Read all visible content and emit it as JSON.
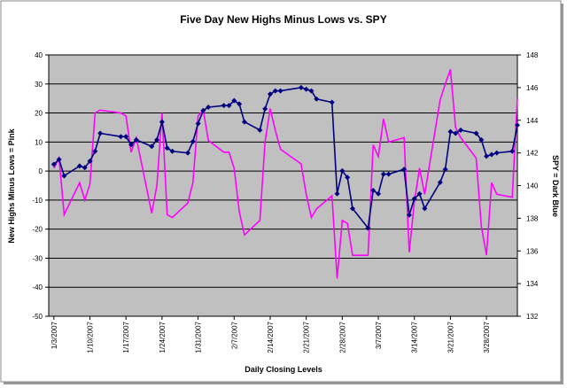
{
  "chart_data": {
    "type": "line",
    "title": "Five Day New Highs Minus Lows vs. SPY",
    "x_label": "Daily Closing Levels",
    "y_label": "New Highs Minus Lows = Pink",
    "y2_label": "SPY = Dark Blue",
    "x": [
      "1/3/2007",
      "1/4/2007",
      "1/5/2007",
      "1/8/2007",
      "1/9/2007",
      "1/10/2007",
      "1/11/2007",
      "1/12/2007",
      "1/16/2007",
      "1/17/2007",
      "1/18/2007",
      "1/19/2007",
      "1/22/2007",
      "1/23/2007",
      "1/24/2007",
      "1/25/2007",
      "1/26/2007",
      "1/29/2007",
      "1/30/2007",
      "1/31/2007",
      "2/1/2007",
      "2/2/2007",
      "2/5/2007",
      "2/6/2007",
      "2/7/2007",
      "2/8/2007",
      "2/9/2007",
      "2/12/2007",
      "2/13/2007",
      "2/14/2007",
      "2/15/2007",
      "2/16/2007",
      "2/20/2007",
      "2/21/2007",
      "2/22/2007",
      "2/23/2007",
      "2/26/2007",
      "2/27/2007",
      "2/28/2007",
      "3/1/2007",
      "3/2/2007",
      "3/5/2007",
      "3/6/2007",
      "3/7/2007",
      "3/8/2007",
      "3/9/2007",
      "3/12/2007",
      "3/13/2007",
      "3/14/2007",
      "3/15/2007",
      "3/16/2007",
      "3/19/2007",
      "3/20/2007",
      "3/21/2007",
      "3/22/2007",
      "3/23/2007",
      "3/26/2007",
      "3/27/2007",
      "3/28/2007",
      "3/29/2007",
      "3/30/2007",
      "4/2/2007",
      "4/3/2007"
    ],
    "xlim": [
      "1/2/2007",
      "4/3/2007"
    ],
    "xticks": [
      "1/3/2007",
      "1/10/2007",
      "1/17/2007",
      "1/24/2007",
      "1/31/2007",
      "2/7/2007",
      "2/14/2007",
      "2/21/2007",
      "2/28/2007",
      "3/7/2007",
      "3/14/2007",
      "3/21/2007",
      "3/28/2007"
    ],
    "ylim": [
      -50,
      40
    ],
    "yticks": [
      -50,
      -40,
      -30,
      -20,
      -10,
      0,
      10,
      20,
      30,
      40
    ],
    "y2lim": [
      132,
      148
    ],
    "y2ticks": [
      132,
      134,
      136,
      138,
      140,
      142,
      144,
      146,
      148
    ],
    "grid": true,
    "series": [
      {
        "name": "New Highs Minus Lows",
        "color": "#ff00ff",
        "axis": "y",
        "values": [
          1,
          4.5,
          -15,
          -4,
          -10,
          -4.5,
          20,
          21,
          20,
          19,
          6.5,
          11.5,
          -14.5,
          -5,
          20,
          -15,
          -16,
          -11,
          -4,
          19,
          21,
          10.5,
          6.5,
          6.5,
          1,
          -14,
          -22,
          -17,
          10,
          21.5,
          14,
          7.5,
          2.5,
          -8,
          -16,
          -13,
          -8.5,
          -37,
          -17,
          -18,
          -29,
          -29,
          9,
          5,
          18,
          10,
          11.5,
          -28,
          -10.5,
          1,
          -8,
          24.5,
          30,
          35,
          15,
          11.5,
          4.5,
          -19,
          -29,
          -4,
          -8,
          -9,
          25
        ]
      },
      {
        "name": "SPY",
        "color": "#000080",
        "axis": "y2",
        "values": [
          141.3,
          141.6,
          140.6,
          141.2,
          141.1,
          141.5,
          142.1,
          143.2,
          143.0,
          143.0,
          142.5,
          142.8,
          142.4,
          142.8,
          143.9,
          142.3,
          142.1,
          142.0,
          142.7,
          143.8,
          144.6,
          144.8,
          144.9,
          144.9,
          145.2,
          145.0,
          143.9,
          143.4,
          144.7,
          145.6,
          145.8,
          145.8,
          146.0,
          145.9,
          145.8,
          145.3,
          145.1,
          139.5,
          140.9,
          140.5,
          138.6,
          137.4,
          139.7,
          139.5,
          140.7,
          140.7,
          141.0,
          138.2,
          139.2,
          139.5,
          138.6,
          140.2,
          141.0,
          143.3,
          143.2,
          143.4,
          143.2,
          142.8,
          141.8,
          141.9,
          142.0,
          142.1,
          143.7
        ]
      }
    ]
  }
}
